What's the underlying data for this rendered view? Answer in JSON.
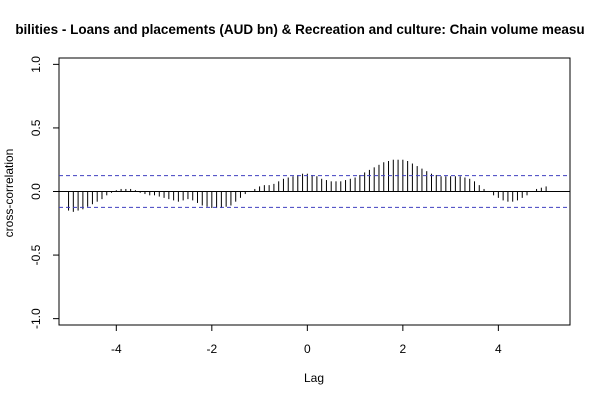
{
  "chart_data": {
    "type": "bar",
    "title": "bilities - Loans and placements (AUD bn) & Recreation and culture: Chain volume measu",
    "xlabel": "Lag",
    "ylabel": "cross-correlation",
    "xlim": [
      -5.2,
      5.5
    ],
    "ylim": [
      -1.05,
      1.05
    ],
    "xticks": [
      "-4",
      "-2",
      "0",
      "2",
      "4"
    ],
    "yticks": [
      "-1.0",
      "-0.5",
      "0.0",
      "0.5",
      "1.0"
    ],
    "confidence_band": 0.125,
    "colors": {
      "bars": "#000000",
      "band": "#4040c0",
      "frame": "#000000"
    },
    "lags": [
      -5.0,
      -4.9,
      -4.8,
      -4.7,
      -4.6,
      -4.5,
      -4.4,
      -4.3,
      -4.2,
      -4.1,
      -4.0,
      -3.9,
      -3.8,
      -3.7,
      -3.6,
      -3.5,
      -3.4,
      -3.3,
      -3.2,
      -3.1,
      -3.0,
      -2.9,
      -2.8,
      -2.7,
      -2.6,
      -2.5,
      -2.4,
      -2.3,
      -2.2,
      -2.1,
      -2.0,
      -1.9,
      -1.8,
      -1.7,
      -1.6,
      -1.5,
      -1.4,
      -1.3,
      -1.2,
      -1.1,
      -1.0,
      -0.9,
      -0.8,
      -0.7,
      -0.6,
      -0.5,
      -0.4,
      -0.3,
      -0.2,
      -0.1,
      0.0,
      0.1,
      0.2,
      0.3,
      0.4,
      0.5,
      0.6,
      0.7,
      0.8,
      0.9,
      1.0,
      1.1,
      1.2,
      1.3,
      1.4,
      1.5,
      1.6,
      1.7,
      1.8,
      1.9,
      2.0,
      2.1,
      2.2,
      2.3,
      2.4,
      2.5,
      2.6,
      2.7,
      2.8,
      2.9,
      3.0,
      3.1,
      3.2,
      3.3,
      3.4,
      3.5,
      3.6,
      3.7,
      3.8,
      3.9,
      4.0,
      4.1,
      4.2,
      4.3,
      4.4,
      4.5,
      4.6,
      4.7,
      4.8,
      4.9,
      5.0
    ],
    "values": [
      -0.15,
      -0.16,
      -0.15,
      -0.14,
      -0.12,
      -0.1,
      -0.08,
      -0.06,
      -0.03,
      -0.01,
      0.01,
      0.02,
      0.02,
      0.02,
      0.01,
      -0.01,
      -0.02,
      -0.03,
      -0.03,
      -0.04,
      -0.05,
      -0.06,
      -0.07,
      -0.08,
      -0.07,
      -0.06,
      -0.07,
      -0.09,
      -0.11,
      -0.12,
      -0.13,
      -0.13,
      -0.13,
      -0.12,
      -0.11,
      -0.08,
      -0.05,
      -0.02,
      0.0,
      0.02,
      0.04,
      0.05,
      0.05,
      0.06,
      0.08,
      0.1,
      0.11,
      0.12,
      0.13,
      0.14,
      0.14,
      0.13,
      0.12,
      0.1,
      0.09,
      0.08,
      0.08,
      0.08,
      0.09,
      0.1,
      0.11,
      0.13,
      0.15,
      0.17,
      0.19,
      0.21,
      0.23,
      0.24,
      0.25,
      0.25,
      0.25,
      0.24,
      0.22,
      0.2,
      0.18,
      0.16,
      0.14,
      0.13,
      0.12,
      0.12,
      0.12,
      0.12,
      0.12,
      0.11,
      0.1,
      0.08,
      0.05,
      0.02,
      0.0,
      -0.03,
      -0.05,
      -0.07,
      -0.08,
      -0.08,
      -0.07,
      -0.05,
      -0.03,
      0.0,
      0.02,
      0.03,
      0.04
    ]
  }
}
